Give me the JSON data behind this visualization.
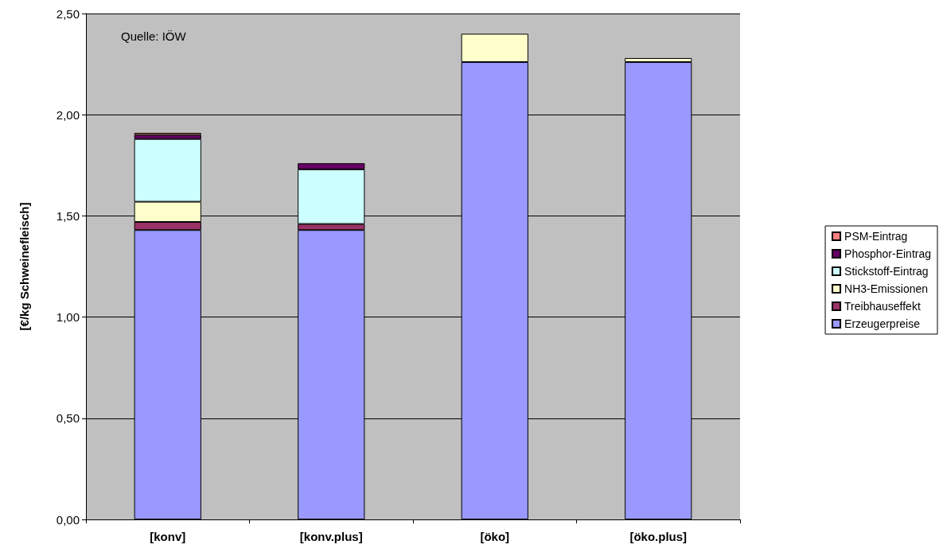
{
  "chart_data": {
    "type": "bar",
    "stacked": true,
    "ylabel": "[€/kg Schweinefleisch]",
    "categories": [
      "[konv]",
      "[konv.plus]",
      "[öko]",
      "[öko.plus]"
    ],
    "series": [
      {
        "name": "Erzeugerpreise",
        "color": "#9999ff",
        "values": [
          1.43,
          1.43,
          2.26,
          2.26
        ]
      },
      {
        "name": "Treibhauseffekt",
        "color": "#993366",
        "values": [
          0.04,
          0.03,
          0,
          0
        ]
      },
      {
        "name": "NH3-Emissionen",
        "color": "#ffffcc",
        "values": [
          0.1,
          0,
          0.14,
          0.02
        ]
      },
      {
        "name": "Stickstoff-Eintrag",
        "color": "#ccffff",
        "values": [
          0.31,
          0.27,
          0,
          0
        ]
      },
      {
        "name": "Phosphor-Eintrag",
        "color": "#660066",
        "values": [
          0.02,
          0.03,
          0,
          0
        ]
      },
      {
        "name": "PSM-Eintrag",
        "color": "#ff8080",
        "values": [
          0.01,
          0,
          0,
          0
        ]
      }
    ],
    "ylim": [
      0,
      2.5
    ],
    "yticks": [
      {
        "value": 0,
        "label": "0,00"
      },
      {
        "value": 0.5,
        "label": "0,50"
      },
      {
        "value": 1,
        "label": "1,00"
      },
      {
        "value": 1.5,
        "label": "1,50"
      },
      {
        "value": 2,
        "label": "2,00"
      },
      {
        "value": 2.5,
        "label": "2,50"
      }
    ],
    "grid": "y",
    "legend": "right",
    "annotations": [
      "Quelle: IÖW"
    ]
  }
}
